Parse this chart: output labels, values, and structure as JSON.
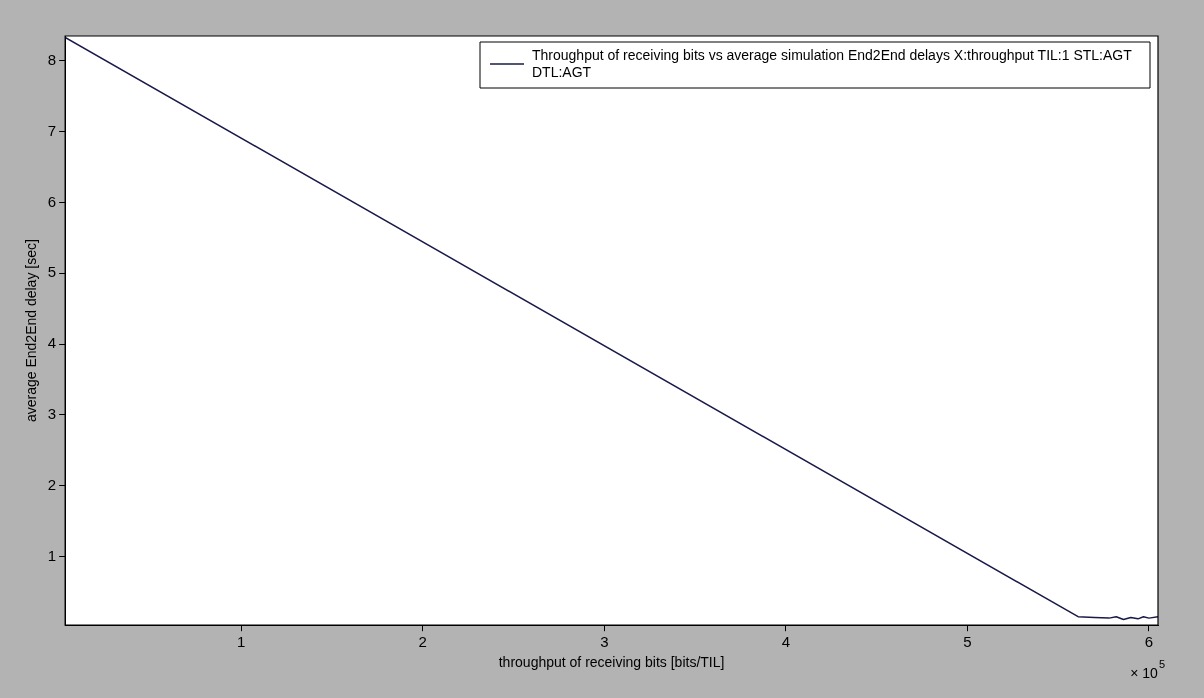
{
  "chart_data": {
    "type": "line",
    "xlabel": "throughput of receiving bits [bits/TIL]",
    "ylabel": "average End2End delay [sec]",
    "annotations": [
      "× 10$^{5}$"
    ],
    "xlim": [
      0.03,
      6.05
    ],
    "xticks": [
      1,
      2,
      3,
      4,
      5,
      6
    ],
    "ylim": [
      0.03,
      8.35
    ],
    "yticks": [
      1,
      2,
      3,
      4,
      5,
      6,
      7,
      8
    ],
    "grid": false,
    "legend": "top right",
    "marker": "none",
    "line_style": "solid",
    "series": [
      {
        "name": "Throughput of receiving bits vs average simulation End2End delays X:throughput TIL:1 STL:AGT DTL:AGT",
        "color": "#1a1a4a",
        "x": [
          0.03,
          5.61,
          5.7,
          5.78,
          5.82,
          5.86,
          5.9,
          5.94,
          5.97,
          6.0,
          6.05
        ],
        "values": [
          8.33,
          0.15,
          0.14,
          0.13,
          0.15,
          0.11,
          0.14,
          0.12,
          0.15,
          0.13,
          0.15
        ]
      }
    ]
  }
}
